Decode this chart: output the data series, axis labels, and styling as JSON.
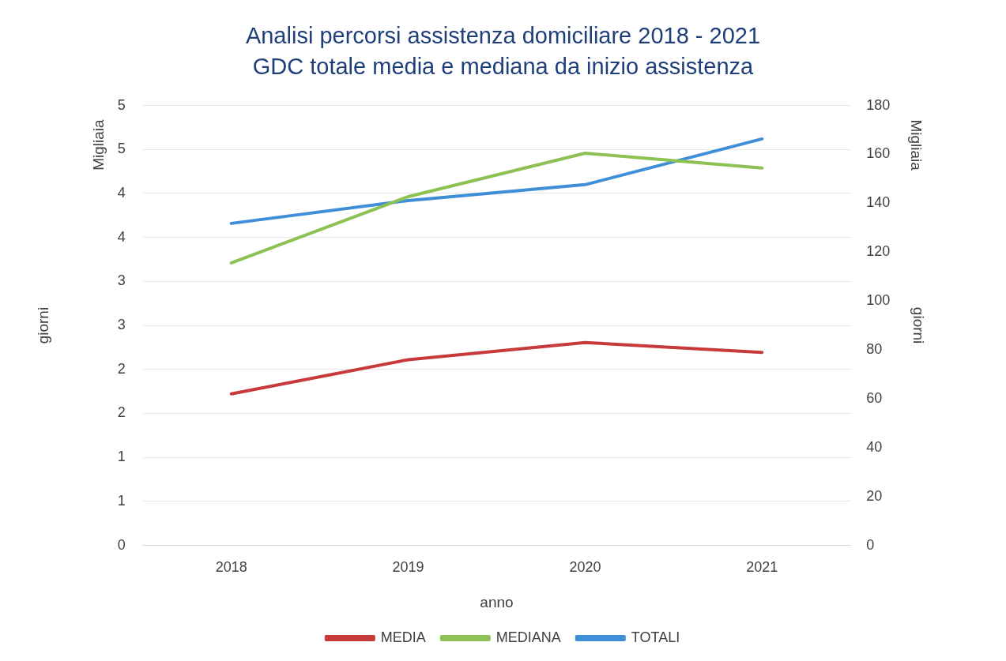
{
  "chart_data": {
    "type": "line",
    "title": "Analisi percorsi assistenza domiciliare 2018 - 2021",
    "subtitle": "GDC totale media e mediana da inizio assistenza",
    "xlabel": "anno",
    "ylabel": "giorni",
    "y2label": "giorni",
    "annotations": [
      "Migliaia",
      "Migliaia"
    ],
    "categories": [
      "2018",
      "2019",
      "2020",
      "2021"
    ],
    "series": [
      {
        "name": "MEDIA",
        "color": "#c8393b",
        "axis": "y2",
        "values": [
          62,
          76,
          83,
          79
        ]
      },
      {
        "name": "MEDIANA",
        "color": "#8dc153",
        "axis": "y2",
        "values": [
          115.6,
          142.7,
          160.5,
          154.4
        ]
      },
      {
        "name": "TOTALI",
        "color": "#3f8fd8",
        "values": [
          3.66,
          3.92,
          4.1,
          4.62
        ]
      }
    ],
    "ylim": [
      0,
      5
    ],
    "yticks": [
      0,
      {
        "value": 0.5,
        "label": "1"
      },
      1,
      {
        "value": 1.5,
        "label": "2"
      },
      2,
      {
        "value": 2.5,
        "label": "3"
      },
      3,
      {
        "value": 3.5,
        "label": "4"
      },
      4,
      {
        "value": 4.5,
        "label": "5"
      },
      5
    ],
    "y2lim": [
      0,
      180
    ],
    "y2ticks": [
      0,
      20,
      40,
      60,
      80,
      100,
      120,
      140,
      160,
      180
    ],
    "grid": "y",
    "legend": "bottom",
    "marker": "none",
    "line_style": "solid"
  }
}
